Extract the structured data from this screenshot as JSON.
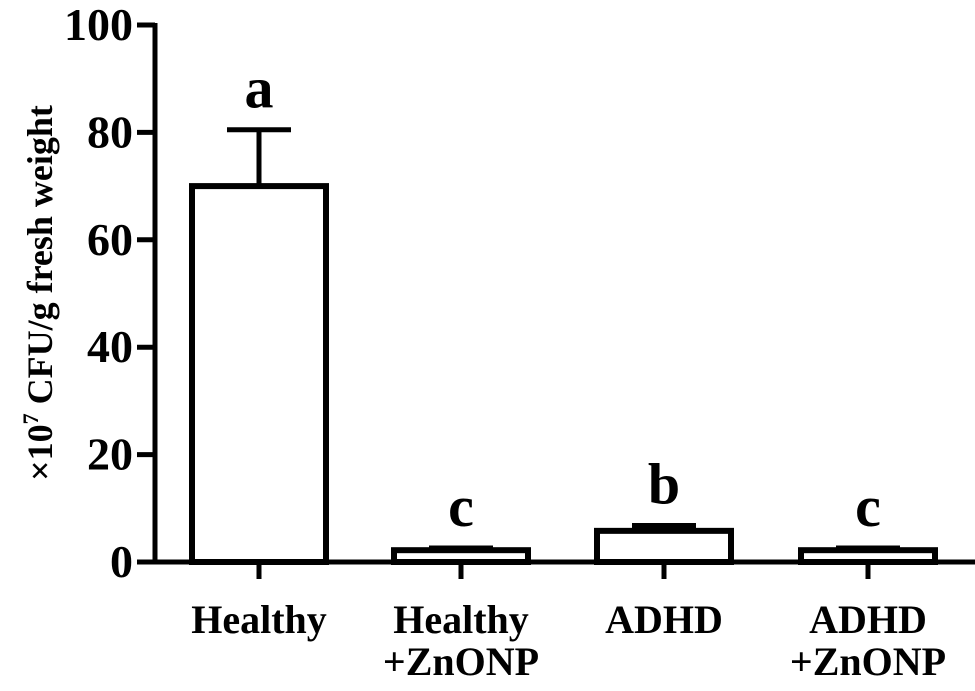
{
  "chart_data": {
    "type": "bar",
    "categories": [
      [
        "Healthy"
      ],
      [
        "Healthy",
        "+ZnONP"
      ],
      [
        "ADHD"
      ],
      [
        "ADHD",
        "+ZnONP"
      ]
    ],
    "values": [
      70,
      2.2,
      5.8,
      2.2
    ],
    "error_upper": [
      80.5,
      2.6,
      6.8,
      2.6
    ],
    "significance": [
      "a",
      "c",
      "b",
      "c"
    ],
    "ylim": [
      0,
      100
    ],
    "yticks": [
      0,
      20,
      40,
      60,
      80,
      100
    ],
    "ylabel": {
      "prefix": "×10",
      "superscript": "7",
      "suffix": " CFU/g fresh weight"
    },
    "bar_fill": "#ffffff",
    "bar_stroke": "#000000"
  }
}
